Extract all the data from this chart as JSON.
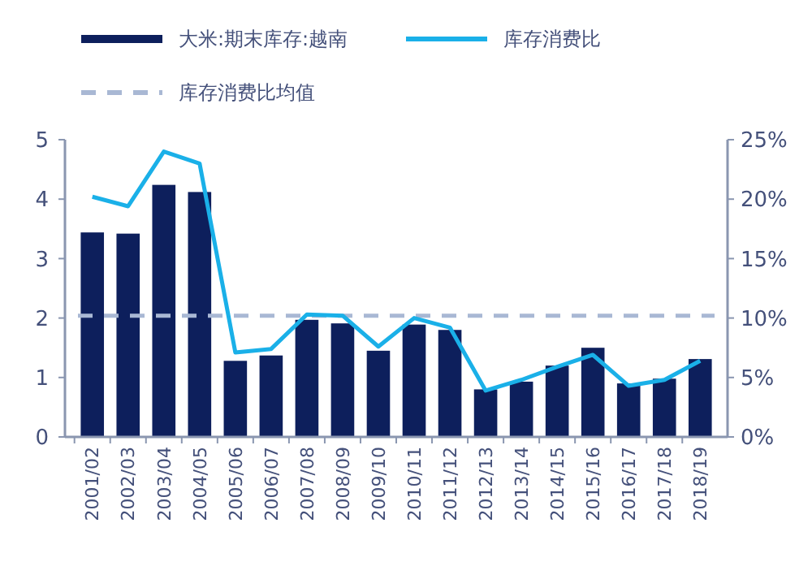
{
  "chart_data": {
    "type": "bar",
    "categories": [
      "2001/02",
      "2002/03",
      "2003/04",
      "2004/05",
      "2005/06",
      "2006/07",
      "2007/08",
      "2008/09",
      "2009/10",
      "2010/11",
      "2011/12",
      "2012/13",
      "2013/14",
      "2014/15",
      "2015/16",
      "2016/17",
      "2017/18",
      "2018/19"
    ],
    "series": [
      {
        "name": "大米:期末库存:越南",
        "color": "#0d1f5c",
        "values": [
          3.44,
          3.42,
          4.24,
          4.12,
          1.28,
          1.37,
          1.97,
          1.91,
          1.45,
          1.89,
          1.8,
          0.8,
          0.93,
          1.2,
          1.5,
          0.9,
          0.98,
          1.31
        ]
      },
      {
        "name": "库存消费比",
        "type": "line",
        "axis": "y2",
        "color": "#1ab0e8",
        "values": [
          20.2,
          19.4,
          24.0,
          23.0,
          7.1,
          7.4,
          10.3,
          10.2,
          7.6,
          10.0,
          9.2,
          3.9,
          4.8,
          5.9,
          6.9,
          4.3,
          4.8,
          6.4
        ]
      }
    ],
    "ylim": [
      0,
      5
    ],
    "yticks": [
      0,
      1,
      2,
      3,
      4,
      5
    ],
    "y2lim": [
      0,
      25
    ],
    "y2ticks": [
      {
        "value": 0,
        "label": "0%"
      },
      {
        "value": 5,
        "label": "5%"
      },
      {
        "value": 10,
        "label": "10%"
      },
      {
        "value": 15,
        "label": "15%"
      },
      {
        "value": 20,
        "label": "20%"
      },
      {
        "value": 25,
        "label": "25%"
      }
    ],
    "ref_lines": [
      {
        "axis": "y2",
        "value": 10.2,
        "label": "库存消费比均值",
        "color": "#a9b8d4",
        "line_style": "dashed"
      }
    ],
    "legend": "top",
    "grid": false
  }
}
